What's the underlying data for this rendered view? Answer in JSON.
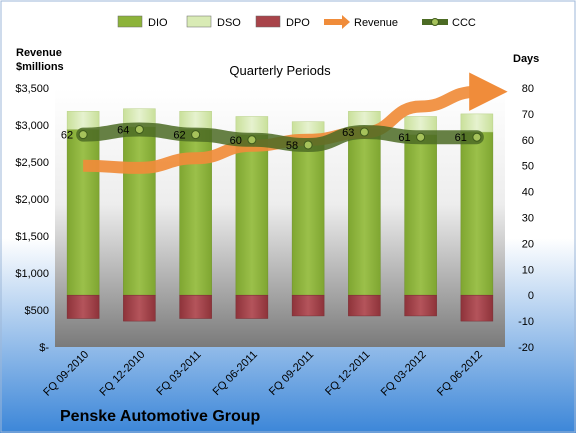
{
  "company_name": "Penske Automotive Group",
  "chart_data": {
    "type": "bar",
    "subtitle": "Quarterly Periods",
    "categories": [
      "FQ 09-2010",
      "FQ 12-2010",
      "FQ 03-2011",
      "FQ 06-2011",
      "FQ 09-2011",
      "FQ 12-2011",
      "FQ 03-2012",
      "FQ 06-2012"
    ],
    "left_axis": {
      "title_line1": "Revenue",
      "title_line2": "$millions",
      "ylim": [
        0,
        3500
      ],
      "tick_labels": [
        "$-",
        "$500",
        "$1,000",
        "$1,500",
        "$2,000",
        "$2,500",
        "$3,000",
        "$3,500"
      ]
    },
    "right_axis": {
      "title": "Days",
      "ylim": [
        -20,
        80
      ],
      "tick_labels": [
        "-20",
        "-10",
        "0",
        "10",
        "20",
        "30",
        "40",
        "50",
        "60",
        "70",
        "80"
      ]
    },
    "legend": [
      "DIO",
      "DSO",
      "DPO",
      "Revenue",
      "CCC"
    ],
    "legend_position": "top",
    "series": [
      {
        "name": "DIO",
        "axis": "right",
        "values": [
          64,
          65,
          64,
          62,
          60,
          64,
          62,
          63
        ]
      },
      {
        "name": "DSO",
        "axis": "right",
        "values": [
          7,
          7,
          7,
          7,
          7,
          7,
          7,
          7
        ]
      },
      {
        "name": "DPO",
        "axis": "right",
        "values": [
          -9,
          -10,
          -9,
          -9,
          -8,
          -8,
          -8,
          -10
        ]
      },
      {
        "name": "Revenue",
        "axis": "left",
        "values": [
          2450,
          2420,
          2550,
          2720,
          2800,
          2900,
          3250,
          3450
        ]
      },
      {
        "name": "CCC",
        "axis": "right",
        "values": [
          62,
          64,
          62,
          60,
          58,
          63,
          61,
          61
        ]
      }
    ],
    "ccc_labels": [
      "62",
      "64",
      "62",
      "60",
      "58",
      "63",
      "61",
      "61"
    ],
    "colors": {
      "DIO": "#8DB33A",
      "DSO": "#D9EBB5",
      "DPO": "#A8444A",
      "Revenue": "#F08C3A",
      "CCC": "#4C6B24",
      "CCC_marker": "#A6C25B",
      "bg_top": "#FFFFFF",
      "bg_bottom": "#3C86D8",
      "plot_top": "#FFFFFF",
      "plot_bottom": "#7A7A7A"
    }
  }
}
